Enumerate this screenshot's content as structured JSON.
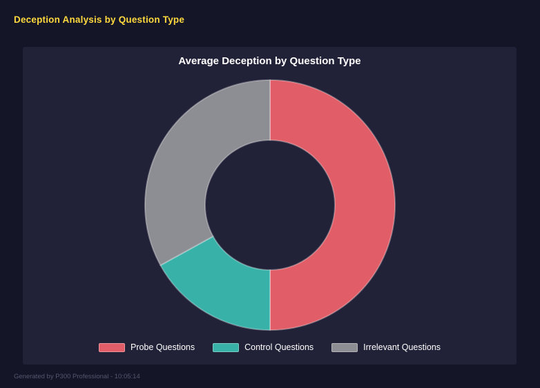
{
  "page": {
    "title": "Deception Analysis by Question Type",
    "footer": "Generated by P300 Professional - 10:05:14"
  },
  "chart_data": {
    "type": "pie",
    "variant": "donut",
    "title": "Average Deception by Question Type",
    "categories": [
      "Probe Questions",
      "Control Questions",
      "Irrelevant Questions"
    ],
    "values": [
      50,
      17,
      33
    ],
    "colors": [
      "#e15d67",
      "#38b2a9",
      "#8d8d94"
    ],
    "legend_position": "bottom",
    "start_angle_deg": 0,
    "direction": "clockwise",
    "donut_hole_ratio": 0.52
  },
  "colors": {
    "page_bg": "#151528",
    "panel_bg": "#212138",
    "title_color": "#ffd93d",
    "text_color": "#ffffff",
    "footer_color": "#55556e",
    "segment_edge": "rgba(255,255,255,0.3)"
  }
}
